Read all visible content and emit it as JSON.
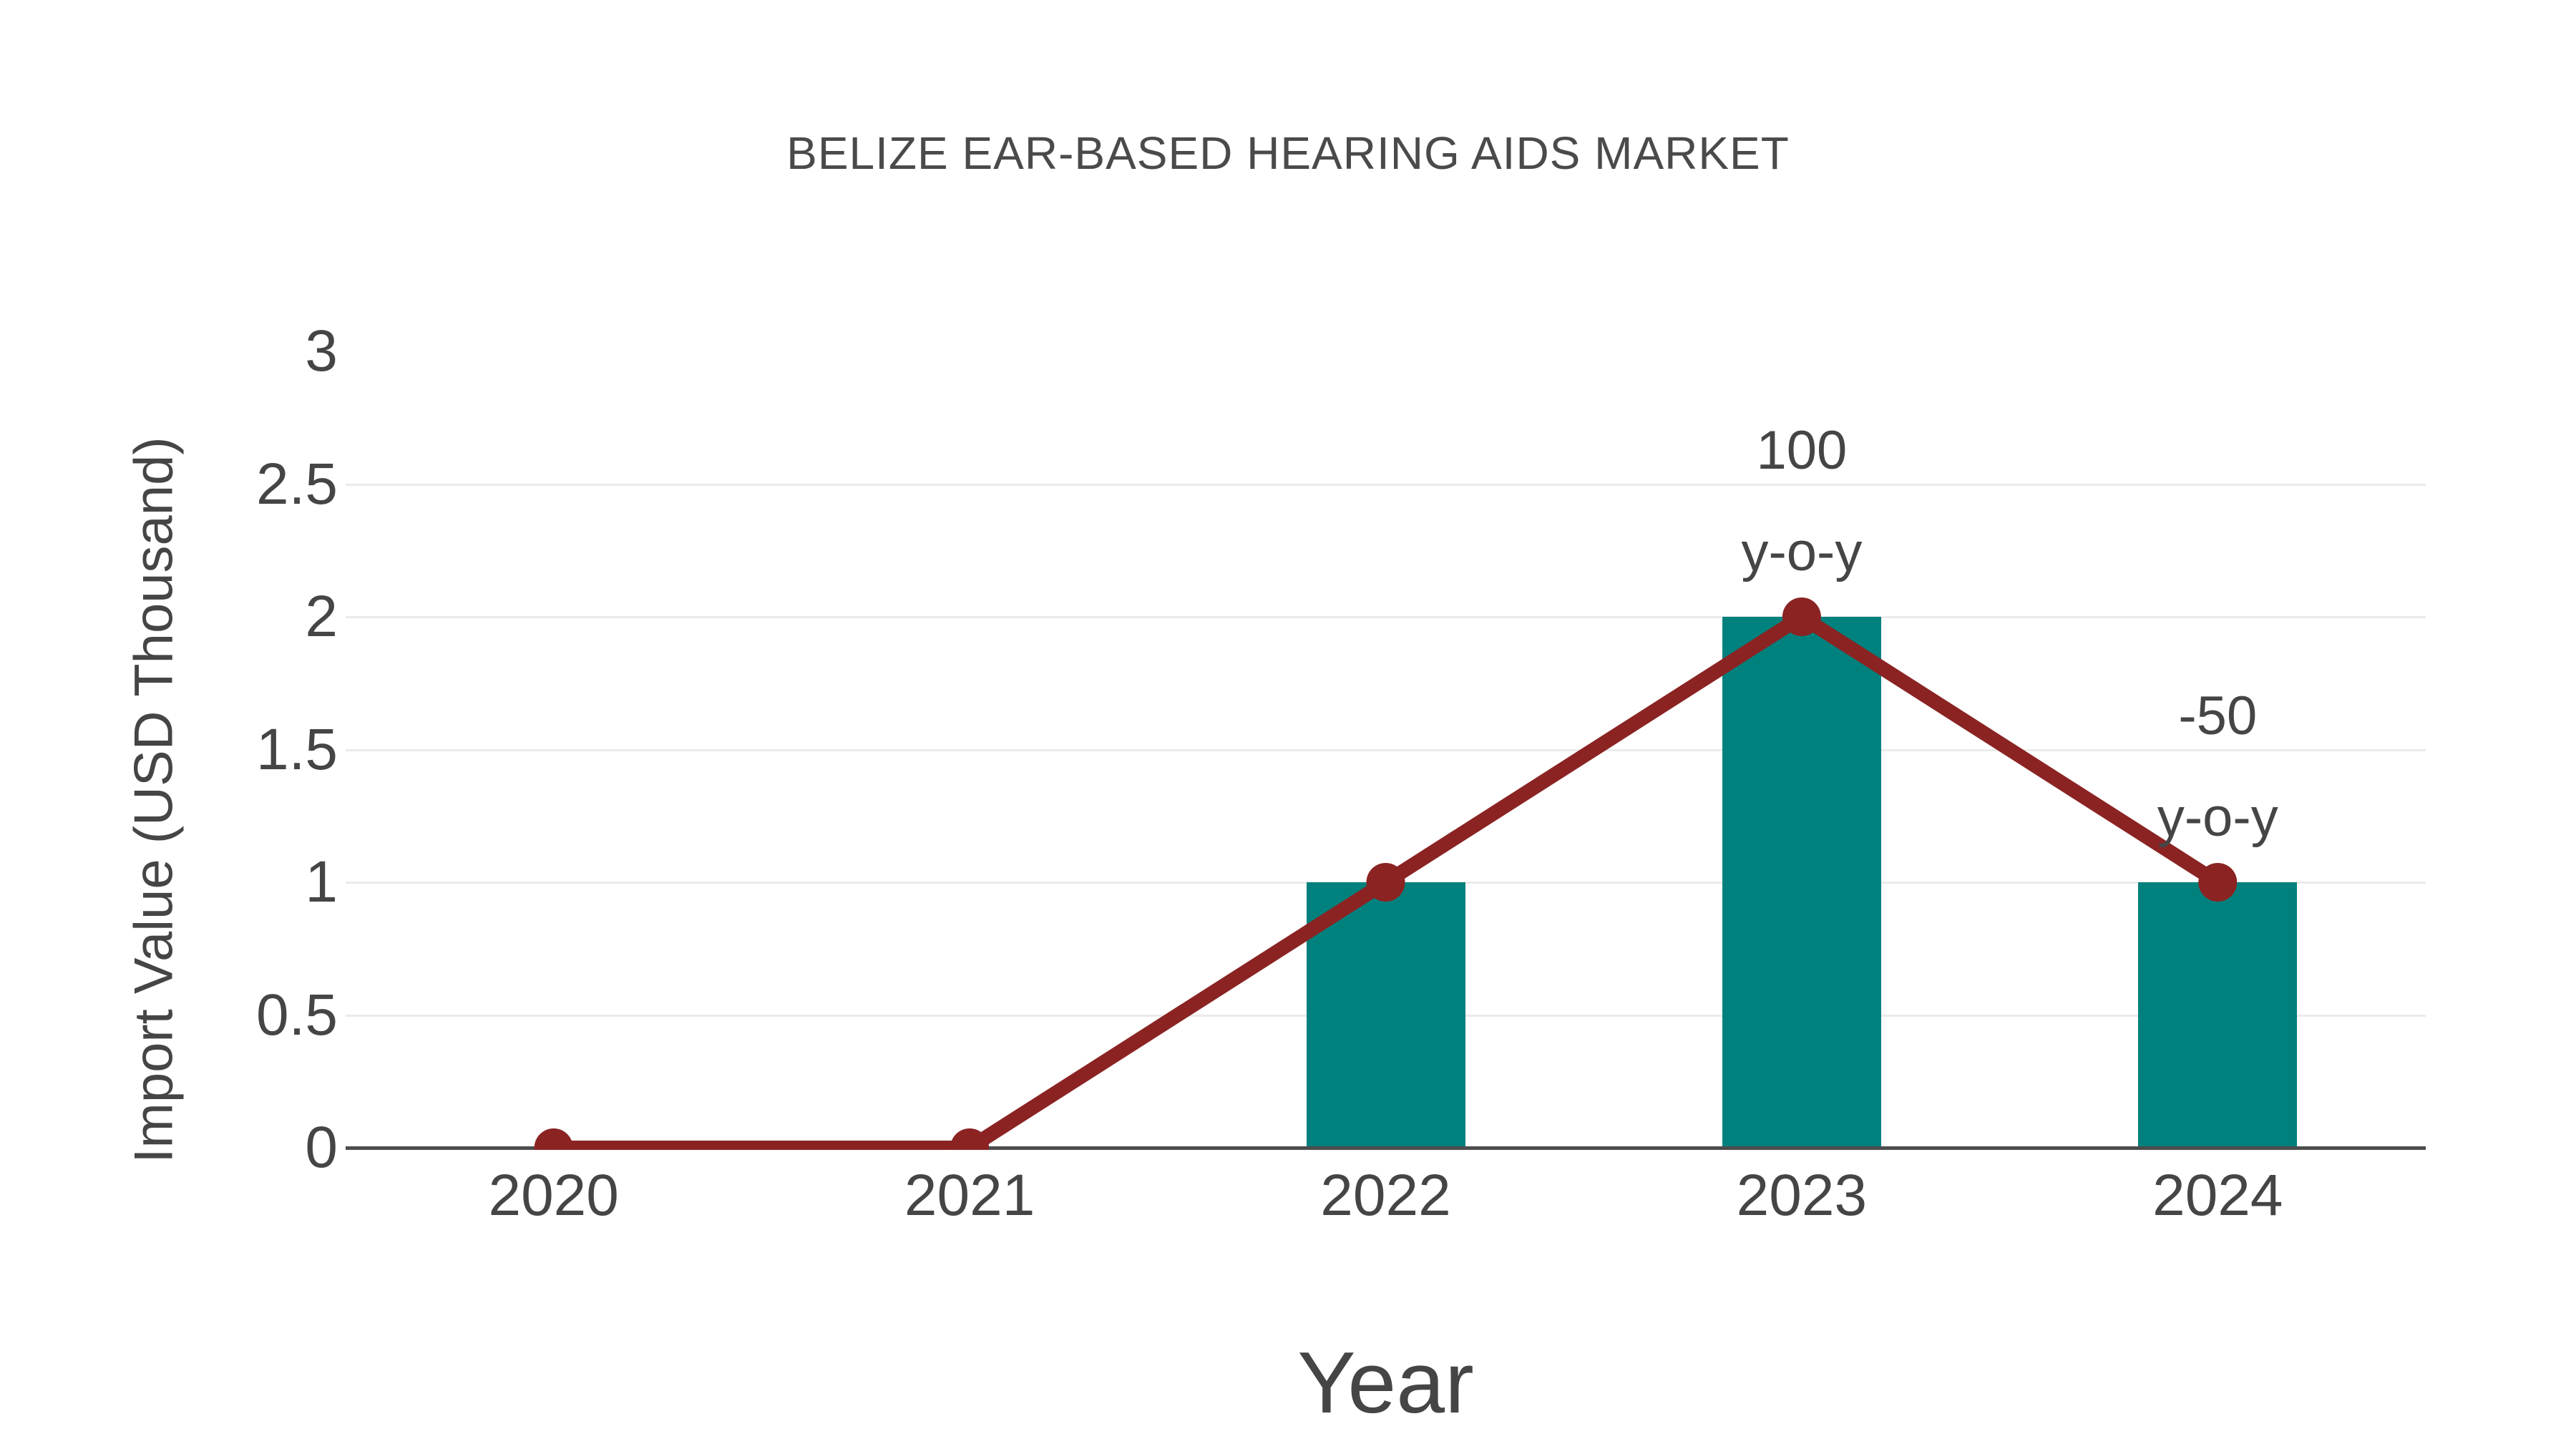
{
  "chart_data": {
    "type": "bar",
    "title": "BELIZE EAR-BASED HEARING AIDS MARKET",
    "xlabel": "Year",
    "ylabel": "Import Value (USD Thousand)",
    "categories": [
      "2020",
      "2021",
      "2022",
      "2023",
      "2024"
    ],
    "series": [
      {
        "name": "import-value-bars",
        "type": "bar",
        "values": [
          0,
          0,
          1,
          2,
          1
        ]
      },
      {
        "name": "import-value-line",
        "type": "line",
        "values": [
          0,
          0,
          1,
          2,
          1
        ]
      }
    ],
    "annotations": [
      {
        "category": "2023",
        "value_label": "100",
        "unit_label": "y-o-y"
      },
      {
        "category": "2024",
        "value_label": "-50",
        "unit_label": "y-o-y"
      }
    ],
    "ytick_labels": [
      "0",
      "0.5",
      "1",
      "1.5",
      "2",
      "2.5",
      "3"
    ],
    "ytick_values": [
      0,
      0.5,
      1,
      1.5,
      2,
      2.5,
      3
    ],
    "ylim": [
      0,
      3
    ],
    "grid": true,
    "gridline_values": [
      0.5,
      1,
      1.5,
      2,
      2.5
    ],
    "legend_position": "none"
  },
  "colors": {
    "bar": "#00817d",
    "line": "#8b2323",
    "marker": "#8b2323",
    "text": "#454545",
    "title_text": "#4a4a4a",
    "gridline": "#ebebeb",
    "axis_line": "#4d4d4d",
    "background": "#ffffff"
  }
}
